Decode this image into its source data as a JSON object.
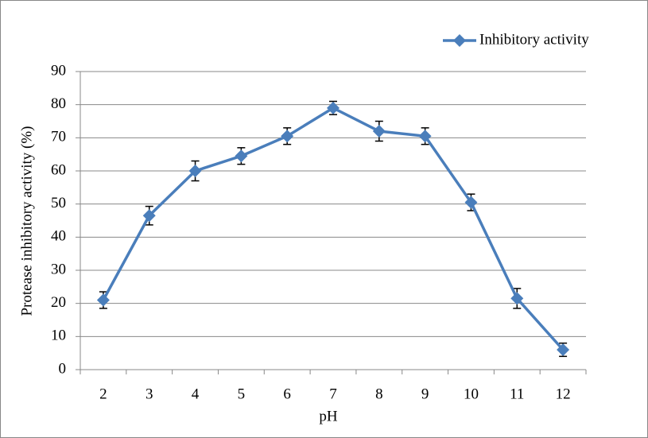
{
  "chart_data": {
    "type": "line",
    "x_label": "pH",
    "y_label": "Protease  inhibitory activity (%)",
    "categories": [
      "2",
      "3",
      "4",
      "5",
      "6",
      "7",
      "8",
      "9",
      "10",
      "11",
      "12"
    ],
    "series": [
      {
        "name": "Inhibitory activity",
        "color": "#4a7ebb",
        "values": [
          21,
          46.5,
          60,
          64.5,
          70.5,
          79,
          72,
          70.5,
          50.5,
          21.5,
          6
        ],
        "errors": [
          2.5,
          2.8,
          3,
          2.5,
          2.5,
          2,
          3,
          2.5,
          2.5,
          3,
          2
        ]
      }
    ],
    "ylim": [
      0,
      90
    ],
    "yticks": [
      0,
      10,
      20,
      30,
      40,
      50,
      60,
      70,
      80,
      90
    ],
    "grid": true,
    "legend": "top-right"
  }
}
